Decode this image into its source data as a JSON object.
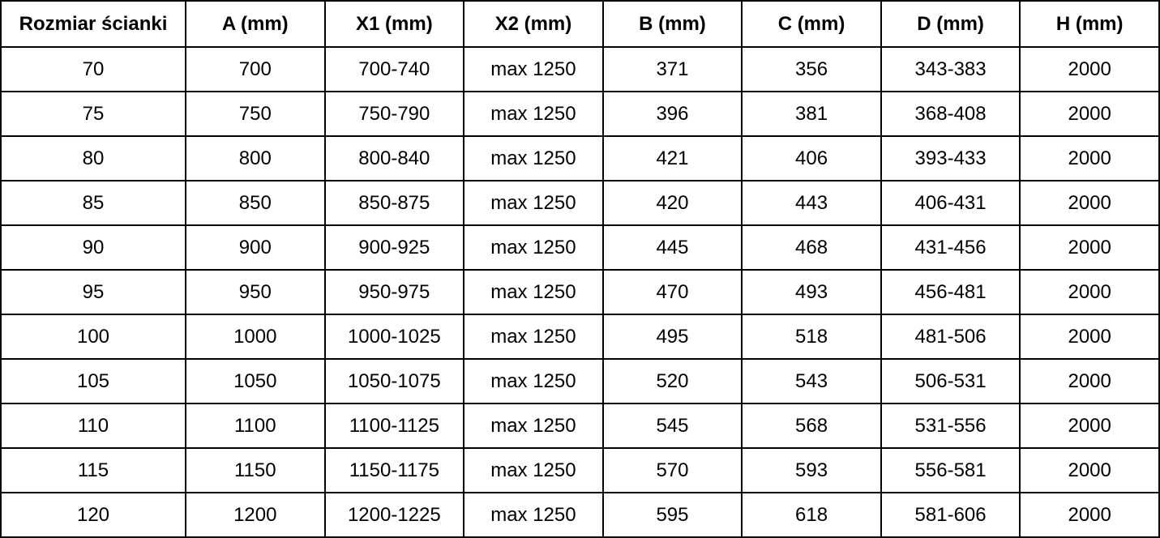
{
  "table": {
    "columns": [
      "Rozmiar ścianki",
      "A (mm)",
      "X1 (mm)",
      "X2 (mm)",
      "B (mm)",
      "C (mm)",
      "D (mm)",
      "H (mm)"
    ],
    "rows": [
      [
        "70",
        "700",
        "700-740",
        "max 1250",
        "371",
        "356",
        "343-383",
        "2000"
      ],
      [
        "75",
        "750",
        "750-790",
        "max 1250",
        "396",
        "381",
        "368-408",
        "2000"
      ],
      [
        "80",
        "800",
        "800-840",
        "max 1250",
        "421",
        "406",
        "393-433",
        "2000"
      ],
      [
        "85",
        "850",
        "850-875",
        "max 1250",
        "420",
        "443",
        "406-431",
        "2000"
      ],
      [
        "90",
        "900",
        "900-925",
        "max 1250",
        "445",
        "468",
        "431-456",
        "2000"
      ],
      [
        "95",
        "950",
        "950-975",
        "max 1250",
        "470",
        "493",
        "456-481",
        "2000"
      ],
      [
        "100",
        "1000",
        "1000-1025",
        "max 1250",
        "495",
        "518",
        "481-506",
        "2000"
      ],
      [
        "105",
        "1050",
        "1050-1075",
        "max 1250",
        "520",
        "543",
        "506-531",
        "2000"
      ],
      [
        "110",
        "1100",
        "1100-1125",
        "max 1250",
        "545",
        "568",
        "531-556",
        "2000"
      ],
      [
        "115",
        "1150",
        "1150-1175",
        "max 1250",
        "570",
        "593",
        "556-581",
        "2000"
      ],
      [
        "120",
        "1200",
        "1200-1225",
        "max 1250",
        "595",
        "618",
        "581-606",
        "2000"
      ]
    ]
  },
  "colors": {
    "border": "#000000",
    "text": "#000000",
    "background": "#ffffff"
  }
}
